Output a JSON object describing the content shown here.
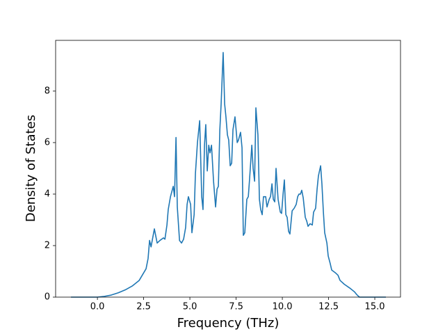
{
  "chart_data": {
    "type": "line",
    "xlabel": "Frequency (THz)",
    "ylabel": "Density of States",
    "color": "#1f77b4",
    "x": [
      -1.43,
      0,
      0.38,
      0.75,
      1.13,
      1.5,
      1.88,
      2.26,
      2.63,
      2.74,
      2.82,
      2.9,
      3.08,
      3.23,
      3.38,
      3.57,
      3.65,
      3.76,
      3.83,
      3.95,
      4.1,
      4.17,
      4.25,
      4.32,
      4.44,
      4.55,
      4.66,
      4.77,
      4.85,
      4.92,
      5.04,
      5.11,
      5.23,
      5.3,
      5.41,
      5.53,
      5.64,
      5.71,
      5.79,
      5.86,
      5.94,
      6.02,
      6.09,
      6.17,
      6.28,
      6.39,
      6.47,
      6.54,
      6.62,
      6.69,
      6.8,
      6.88,
      6.95,
      7.03,
      7.1,
      7.18,
      7.26,
      7.33,
      7.44,
      7.56,
      7.63,
      7.74,
      7.82,
      7.89,
      7.97,
      8.08,
      8.16,
      8.23,
      8.35,
      8.42,
      8.5,
      8.57,
      8.68,
      8.76,
      8.83,
      8.91,
      8.98,
      9.1,
      9.17,
      9.29,
      9.36,
      9.44,
      9.51,
      9.59,
      9.66,
      9.77,
      9.89,
      9.96,
      10.04,
      10.11,
      10.19,
      10.26,
      10.34,
      10.41,
      10.53,
      10.64,
      10.75,
      10.83,
      10.9,
      10.98,
      11.05,
      11.13,
      11.24,
      11.32,
      11.39,
      11.5,
      11.62,
      11.69,
      11.8,
      11.88,
      11.95,
      12.07,
      12.14,
      12.22,
      12.29,
      12.41,
      12.48,
      12.59,
      12.67,
      12.86,
      13.01,
      13.12,
      13.35,
      13.65,
      13.91,
      14.02,
      14.17,
      15.6
    ],
    "values": [
      0,
      0,
      0.03,
      0.08,
      0.17,
      0.28,
      0.43,
      0.65,
      1.1,
      1.5,
      2.2,
      1.95,
      2.65,
      2.1,
      2.2,
      2.3,
      2.25,
      2.8,
      3.4,
      3.9,
      4.3,
      3.9,
      6.2,
      3.5,
      2.2,
      2.1,
      2.25,
      2.7,
      3.6,
      3.9,
      3.6,
      2.5,
      3.2,
      4.8,
      6.0,
      6.85,
      3.9,
      3.4,
      5.9,
      6.7,
      4.9,
      5.9,
      5.6,
      5.9,
      4.5,
      3.5,
      4.2,
      4.3,
      6.5,
      7.5,
      9.5,
      7.5,
      7.0,
      6.3,
      6.1,
      5.1,
      5.2,
      6.5,
      7.0,
      6.0,
      6.1,
      6.4,
      5.8,
      2.4,
      2.5,
      3.8,
      3.9,
      4.6,
      5.9,
      5.0,
      4.5,
      7.35,
      6.3,
      3.8,
      3.4,
      3.2,
      3.9,
      3.9,
      3.5,
      3.8,
      3.9,
      4.4,
      3.8,
      3.7,
      5.0,
      3.8,
      3.3,
      3.25,
      4.0,
      4.55,
      3.2,
      3.1,
      2.55,
      2.45,
      3.35,
      3.45,
      3.6,
      3.9,
      4.0,
      4.0,
      4.15,
      3.85,
      3.1,
      2.95,
      2.75,
      2.85,
      2.8,
      3.3,
      3.45,
      4.2,
      4.7,
      5.1,
      4.4,
      3.3,
      2.5,
      2.1,
      1.6,
      1.3,
      1.05,
      0.95,
      0.85,
      0.65,
      0.5,
      0.35,
      0.2,
      0.1,
      0,
      0
    ],
    "xlim": [
      -2.26,
      16.39
    ],
    "xticks": [
      {
        "value": 0,
        "label": "0.0"
      },
      2.5,
      {
        "value": 5,
        "label": "5.0"
      },
      7.5,
      {
        "value": 10,
        "label": "10.0"
      },
      12.5,
      {
        "value": 15,
        "label": "15.0"
      }
    ],
    "ylim": [
      0,
      9.97
    ],
    "yticks": [
      0,
      2,
      4,
      6,
      8
    ]
  }
}
